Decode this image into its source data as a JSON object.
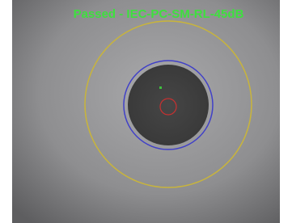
{
  "result": {
    "status_text": "Passed - IEC-PC-SM-RL-45dB"
  }
}
